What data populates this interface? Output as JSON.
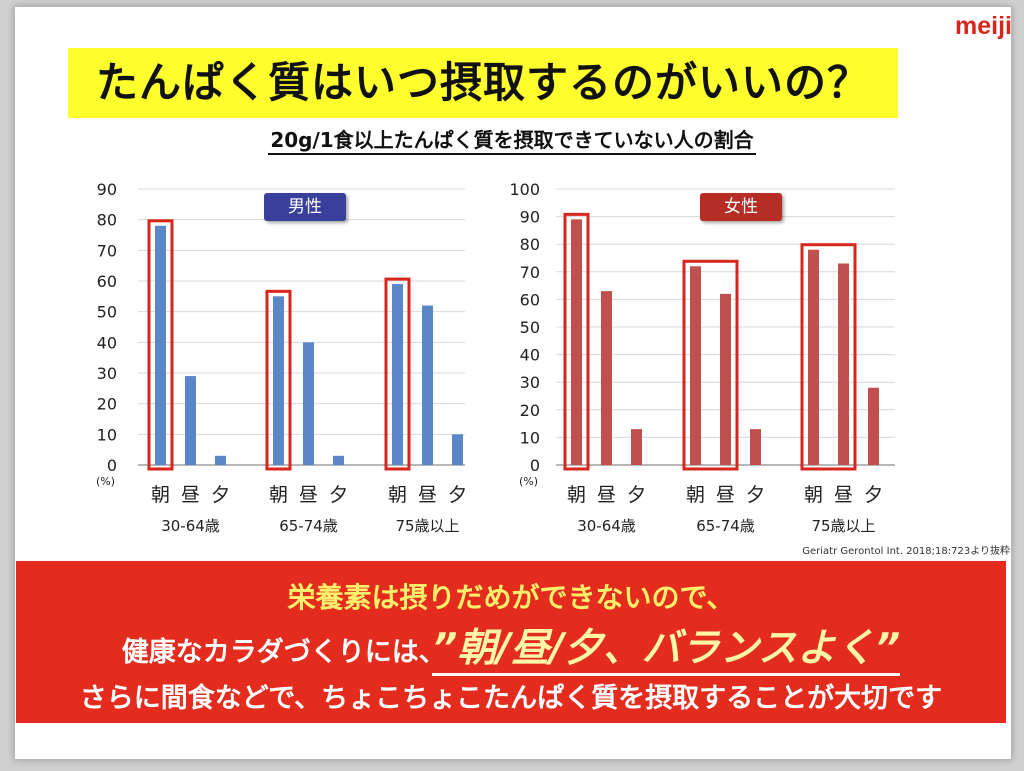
{
  "logo": "meiji",
  "title": "たんぱく質はいつ摂取するのがいいの？",
  "subtitle": "20g/1食以上たんぱく質を摂取できていない人の割合",
  "citation": "Geriatr Gerontol Int. 2018;18:723より抜粋",
  "banner": {
    "line1": "栄養素は摂りだめができないので、",
    "line2_prefix": "健康なカラダづくりには、",
    "line2_emphasis": "”朝/昼/夕、バランスよく”",
    "line3": "さらに間食などで、ちょこちょこたんぱく質を摂取することが大切です"
  },
  "colors": {
    "male_bar": "#5b87c8",
    "female_bar": "#c0504d",
    "male_badge": "#3a3f9c",
    "female_badge": "#b52d25",
    "highlight_box": "#d8261c",
    "banner": "#e42c1e"
  },
  "chart_data": [
    {
      "type": "bar",
      "legend": "男性",
      "unit_label": "(%)",
      "ylim": [
        0,
        90
      ],
      "yticks": [
        0,
        10,
        20,
        30,
        40,
        50,
        60,
        70,
        80,
        90
      ],
      "meal_labels": [
        "朝",
        "昼",
        "夕"
      ],
      "groups": [
        {
          "name": "30-64歳",
          "values": [
            78,
            29,
            3
          ],
          "highlight": [
            0
          ]
        },
        {
          "name": "65-74歳",
          "values": [
            55,
            40,
            3
          ],
          "highlight": [
            0
          ]
        },
        {
          "name": "75歳以上",
          "values": [
            59,
            52,
            10
          ],
          "highlight": [
            0
          ]
        }
      ]
    },
    {
      "type": "bar",
      "legend": "女性",
      "unit_label": "(%)",
      "ylim": [
        0,
        100
      ],
      "yticks": [
        0,
        10,
        20,
        30,
        40,
        50,
        60,
        70,
        80,
        90,
        100
      ],
      "meal_labels": [
        "朝",
        "昼",
        "夕"
      ],
      "groups": [
        {
          "name": "30-64歳",
          "values": [
            89,
            63,
            13
          ],
          "highlight": [
            0
          ]
        },
        {
          "name": "65-74歳",
          "values": [
            72,
            62,
            13
          ],
          "highlight": [
            0,
            1
          ]
        },
        {
          "name": "75歳以上",
          "values": [
            78,
            73,
            28
          ],
          "highlight": [
            0,
            1
          ]
        }
      ]
    }
  ]
}
